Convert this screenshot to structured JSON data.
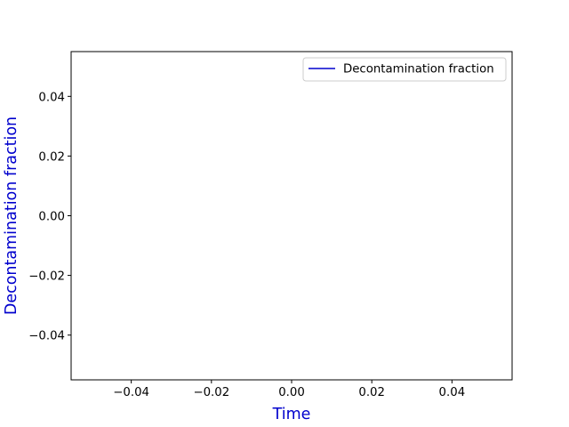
{
  "chart_data": {
    "type": "line",
    "title": "",
    "xlabel": "Time",
    "ylabel": "Decontamination  fraction",
    "xlim": [
      -0.055,
      0.055
    ],
    "ylim": [
      -0.055,
      0.055
    ],
    "x_ticks": [
      -0.04,
      -0.02,
      0.0,
      0.02,
      0.04
    ],
    "x_tick_labels": [
      "−0.04",
      "−0.02",
      "0.00",
      "0.02",
      "0.04"
    ],
    "y_ticks": [
      -0.04,
      -0.02,
      0.0,
      0.02,
      0.04
    ],
    "y_tick_labels": [
      "−0.04",
      "−0.02",
      "0.00",
      "0.02",
      "0.04"
    ],
    "grid": false,
    "legend_position": "top-right",
    "series": [
      {
        "name": "Decontamination fraction",
        "x": [],
        "y": []
      }
    ]
  },
  "colors": {
    "series_line": "#0000cd",
    "axis_label": "#0000cd",
    "axes": "#000000"
  }
}
